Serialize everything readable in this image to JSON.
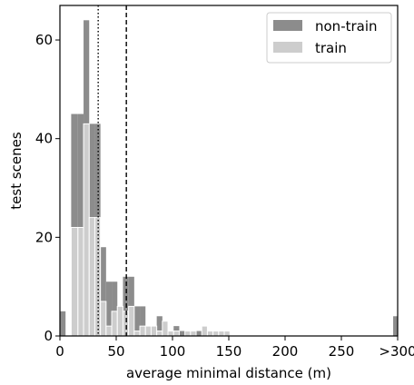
{
  "chart_data": {
    "type": "bar",
    "subtype": "histogram-stepped-overlay",
    "xlabel": "average minimal distance (m)",
    "ylabel": "test scenes",
    "bin_width": 10,
    "xlim": [
      0,
      300
    ],
    "ylim": [
      0,
      67
    ],
    "x_ticks": [
      {
        "value": 0,
        "label": "0"
      },
      {
        "value": 50,
        "label": "50"
      },
      {
        "value": 100,
        "label": "100"
      },
      {
        "value": 150,
        "label": "150"
      },
      {
        "value": 200,
        "label": "200"
      },
      {
        "value": 250,
        "label": "250"
      },
      {
        "value": 300,
        "label": ">300"
      }
    ],
    "y_ticks": [
      {
        "value": 0,
        "label": "0"
      },
      {
        "value": 20,
        "label": "20"
      },
      {
        "value": 40,
        "label": "40"
      },
      {
        "value": 60,
        "label": "60"
      }
    ],
    "reference_lines": [
      {
        "x": 34,
        "style": "dotted",
        "color": "#000000"
      },
      {
        "x": 59,
        "style": "dashed",
        "color": "#000000"
      }
    ],
    "legend": {
      "placement": "top-right"
    },
    "series": [
      {
        "name": "non-train",
        "color": "#8c8c8c",
        "bins": [
          {
            "x0": 0,
            "x1": 5,
            "value": 5
          },
          {
            "x0": 5,
            "x1": 10,
            "value": 0
          },
          {
            "x0": 10,
            "x1": 16,
            "value": 45
          },
          {
            "x0": 16,
            "x1": 21,
            "value": 45
          },
          {
            "x0": 21,
            "x1": 26,
            "value": 64
          },
          {
            "x0": 26,
            "x1": 31,
            "value": 43
          },
          {
            "x0": 31,
            "x1": 36,
            "value": 43
          },
          {
            "x0": 36,
            "x1": 41,
            "value": 18
          },
          {
            "x0": 41,
            "x1": 46,
            "value": 11
          },
          {
            "x0": 46,
            "x1": 51,
            "value": 11
          },
          {
            "x0": 51,
            "x1": 56,
            "value": 6
          },
          {
            "x0": 56,
            "x1": 61,
            "value": 12
          },
          {
            "x0": 61,
            "x1": 66,
            "value": 12
          },
          {
            "x0": 66,
            "x1": 71,
            "value": 6
          },
          {
            "x0": 71,
            "x1": 76,
            "value": 6
          },
          {
            "x0": 76,
            "x1": 81,
            "value": 2
          },
          {
            "x0": 81,
            "x1": 86,
            "value": 2
          },
          {
            "x0": 86,
            "x1": 91,
            "value": 4
          },
          {
            "x0": 91,
            "x1": 96,
            "value": 3
          },
          {
            "x0": 96,
            "x1": 101,
            "value": 0
          },
          {
            "x0": 101,
            "x1": 106,
            "value": 2
          },
          {
            "x0": 106,
            "x1": 111,
            "value": 1
          },
          {
            "x0": 111,
            "x1": 116,
            "value": 0
          },
          {
            "x0": 116,
            "x1": 121,
            "value": 1
          },
          {
            "x0": 121,
            "x1": 126,
            "value": 1
          },
          {
            "x0": 126,
            "x1": 131,
            "value": 0
          },
          {
            "x0": 131,
            "x1": 136,
            "value": 1
          },
          {
            "x0": 136,
            "x1": 141,
            "value": 1
          },
          {
            "x0": 141,
            "x1": 146,
            "value": 0
          },
          {
            "x0": 146,
            "x1": 151,
            "value": 1
          },
          {
            "x0": 296,
            "x1": 300,
            "value": 4
          }
        ]
      },
      {
        "name": "train",
        "color": "#cdcdcd",
        "bins": [
          {
            "x0": 0,
            "x1": 5,
            "value": 0
          },
          {
            "x0": 5,
            "x1": 10,
            "value": 0
          },
          {
            "x0": 10,
            "x1": 16,
            "value": 22
          },
          {
            "x0": 16,
            "x1": 21,
            "value": 22
          },
          {
            "x0": 21,
            "x1": 26,
            "value": 43
          },
          {
            "x0": 26,
            "x1": 31,
            "value": 24
          },
          {
            "x0": 31,
            "x1": 36,
            "value": 24
          },
          {
            "x0": 36,
            "x1": 41,
            "value": 7
          },
          {
            "x0": 41,
            "x1": 46,
            "value": 2
          },
          {
            "x0": 46,
            "x1": 51,
            "value": 5
          },
          {
            "x0": 51,
            "x1": 56,
            "value": 6
          },
          {
            "x0": 56,
            "x1": 61,
            "value": 5
          },
          {
            "x0": 61,
            "x1": 66,
            "value": 6
          },
          {
            "x0": 66,
            "x1": 71,
            "value": 1
          },
          {
            "x0": 71,
            "x1": 76,
            "value": 2
          },
          {
            "x0": 76,
            "x1": 81,
            "value": 2
          },
          {
            "x0": 81,
            "x1": 86,
            "value": 2
          },
          {
            "x0": 86,
            "x1": 91,
            "value": 1
          },
          {
            "x0": 91,
            "x1": 96,
            "value": 3
          },
          {
            "x0": 96,
            "x1": 101,
            "value": 1
          },
          {
            "x0": 101,
            "x1": 106,
            "value": 1
          },
          {
            "x0": 106,
            "x1": 111,
            "value": 0
          },
          {
            "x0": 111,
            "x1": 116,
            "value": 1
          },
          {
            "x0": 116,
            "x1": 121,
            "value": 1
          },
          {
            "x0": 121,
            "x1": 126,
            "value": 0
          },
          {
            "x0": 126,
            "x1": 131,
            "value": 2
          },
          {
            "x0": 131,
            "x1": 136,
            "value": 1
          },
          {
            "x0": 136,
            "x1": 141,
            "value": 1
          },
          {
            "x0": 141,
            "x1": 146,
            "value": 1
          },
          {
            "x0": 146,
            "x1": 151,
            "value": 1
          },
          {
            "x0": 296,
            "x1": 300,
            "value": 0
          }
        ]
      }
    ]
  }
}
